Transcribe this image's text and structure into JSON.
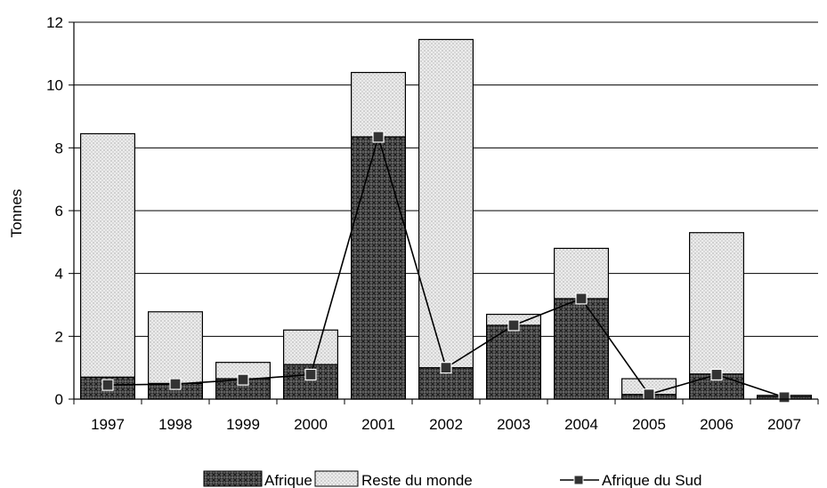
{
  "chart_data": {
    "type": "bar",
    "stacked": true,
    "categories": [
      "1997",
      "1998",
      "1999",
      "2000",
      "2001",
      "2002",
      "2003",
      "2004",
      "2005",
      "2006",
      "2007"
    ],
    "series": [
      {
        "name": "Afrique",
        "kind": "bar",
        "pattern": "crosshatch-dark",
        "values": [
          0.7,
          0.5,
          0.65,
          1.1,
          8.35,
          1.0,
          2.35,
          3.2,
          0.15,
          0.8,
          0.08
        ]
      },
      {
        "name": "Reste du monde",
        "kind": "bar",
        "pattern": "dotted-light",
        "values": [
          7.75,
          2.28,
          0.52,
          1.1,
          2.05,
          10.45,
          0.35,
          1.6,
          0.5,
          4.5,
          0.04
        ]
      },
      {
        "name": "Afrique du Sud",
        "kind": "line",
        "marker": "square",
        "values": [
          0.45,
          0.48,
          0.62,
          0.78,
          8.35,
          1.0,
          2.35,
          3.2,
          0.15,
          0.78,
          0.06
        ]
      }
    ],
    "xlabel": "",
    "ylabel": "Tonnes",
    "ylim": [
      0,
      12
    ],
    "yticks": [
      "0",
      "2",
      "4",
      "6",
      "8",
      "10",
      "12"
    ],
    "grid": true,
    "legend": "bottom",
    "colors": {
      "bar_outline": "#000000",
      "afrique_fill": "#555555",
      "reste_fill": "#e6e6e6",
      "line": "#000000",
      "marker": "#333333"
    }
  }
}
